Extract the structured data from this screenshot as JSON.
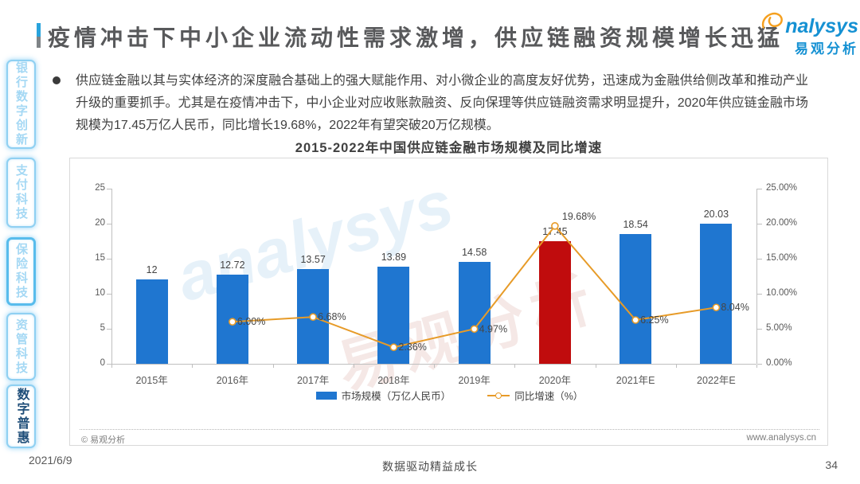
{
  "slide": {
    "title": "疫情冲击下中小企业流动性需求激增，供应链融资规模增长迅猛",
    "bullet_text": "供应链金融以其与实体经济的深度融合基础上的强大赋能作用、对小微企业的高度友好优势，迅速成为金融供给侧改革和推动产业升级的重要抓手。尤其是在疫情冲击下，中小企业对应收账款融资、反向保理等供应链融资需求明显提升，2020年供应链金融市场规模为17.45万亿人民币，同比增长19.68%，2022年有望突破20万亿规模。",
    "date": "2021/6/9",
    "footer_slogan": "数据驱动精益成长",
    "page_number": "34"
  },
  "logo": {
    "brand": "nalysys",
    "brand_cn": "易观分析"
  },
  "watermark": {
    "line1": "analysys",
    "line2": "易观分析"
  },
  "sidebar": {
    "items": [
      {
        "label": "银行数字创新"
      },
      {
        "label": "支付科技"
      },
      {
        "label": "保险科技"
      },
      {
        "label": "资管科技"
      },
      {
        "label": "数字普惠"
      }
    ]
  },
  "chart_data": {
    "type": "bar+line",
    "title": "2015-2022年中国供应链金融市场规模及同比增速",
    "categories": [
      "2015年",
      "2016年",
      "2017年",
      "2018年",
      "2019年",
      "2020年",
      "2021年E",
      "2022年E"
    ],
    "series": [
      {
        "name": "市场规模（万亿人民币）",
        "type": "bar",
        "values": [
          12,
          12.72,
          13.57,
          13.89,
          14.58,
          17.45,
          18.54,
          20.03
        ],
        "labels": [
          "12",
          "12.72",
          "13.57",
          "13.89",
          "14.58",
          "17.45",
          "18.54",
          "20.03"
        ]
      },
      {
        "name": "同比增速（%）",
        "type": "line",
        "values": [
          null,
          6.0,
          6.68,
          2.36,
          4.97,
          19.68,
          6.25,
          8.04
        ],
        "labels": [
          null,
          "6.00%",
          "6.68%",
          "2.36%",
          "4.97%",
          "19.68%",
          "6.25%",
          "8.04%"
        ]
      }
    ],
    "highlight_index": 5,
    "left_axis": {
      "min": 0,
      "max": 25,
      "ticks": [
        "0",
        "5",
        "10",
        "15",
        "20",
        "25"
      ]
    },
    "right_axis": {
      "min": 0,
      "max": 25,
      "ticks": [
        "0.00%",
        "5.00%",
        "10.00%",
        "15.00%",
        "20.00%",
        "25.00%"
      ]
    },
    "colors": {
      "bar": "#1f76d0",
      "bar_highlight": "#c00c0d",
      "line": "#e79b28"
    },
    "legend_position": "bottom",
    "grid": false,
    "source": "© 易观分析",
    "website": "www.analysys.cn"
  }
}
